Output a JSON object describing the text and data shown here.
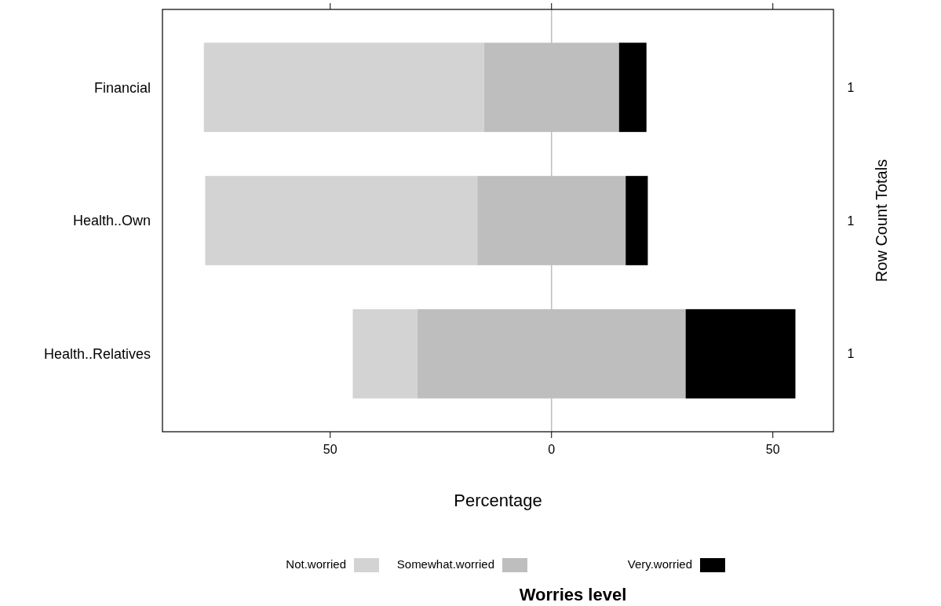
{
  "chart_data": {
    "type": "bar",
    "orientation": "horizontal",
    "categories": [
      "Financial",
      "Health..Own",
      "Health..Relatives"
    ],
    "y2_categories": [
      "1",
      "1",
      "1"
    ],
    "series": [
      {
        "name": "Not.worried",
        "color": "#d3d3d3",
        "values": [
          63.3,
          61.5,
          14.6
        ],
        "base": [
          -78.55,
          -78.25,
          -44.9
        ]
      },
      {
        "name": "Somewhat.worried",
        "color": "#bebebe",
        "values": [
          30.5,
          33.5,
          60.6
        ],
        "base": [
          -15.25,
          -16.75,
          -30.3
        ]
      },
      {
        "name": "Very.worried",
        "color": "#000000",
        "values": [
          6.2,
          5.0,
          24.8
        ],
        "base": [
          15.25,
          16.75,
          30.3
        ]
      }
    ],
    "xlim": [
      -87.9,
      63.7
    ],
    "xticks": [
      {
        "value": -50,
        "label": "50"
      },
      0,
      50
    ],
    "xlabel": "Percentage",
    "y2label": "Row Count Totals",
    "legend_title": "Worries level",
    "ref_lines": [
      {
        "axis": "x",
        "value": 0,
        "color": "#bebebe"
      }
    ],
    "legend": "bottom",
    "grid": false
  }
}
